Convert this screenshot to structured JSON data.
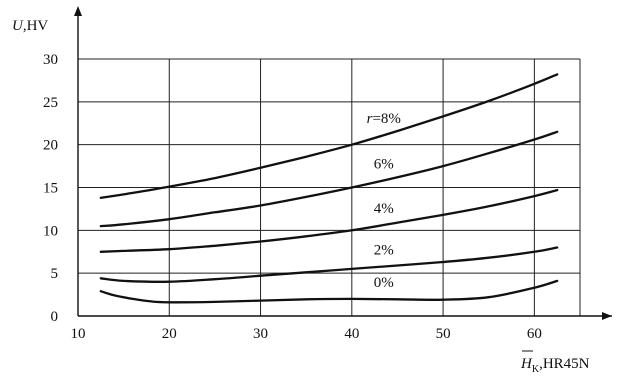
{
  "chart_data": {
    "type": "line",
    "xlabel_symbol": "H",
    "xlabel_subscript": "K",
    "xlabel_unit": ",HR45N",
    "ylabel_symbol": "U",
    "ylabel_unit": ",HV",
    "xlim": [
      10,
      65
    ],
    "ylim": [
      0,
      30
    ],
    "xticks": [
      10,
      20,
      30,
      40,
      50,
      60
    ],
    "yticks": [
      0,
      5,
      10,
      15,
      20,
      25,
      30
    ],
    "grid": true,
    "series": [
      {
        "name": "r=8%",
        "x": [
          12.5,
          15,
          20,
          25,
          30,
          35,
          40,
          45,
          50,
          55,
          60,
          62.5
        ],
        "y": [
          13.8,
          14.2,
          15.1,
          16.1,
          17.3,
          18.6,
          20.0,
          21.6,
          23.3,
          25.1,
          27.1,
          28.2
        ]
      },
      {
        "name": "6%",
        "x": [
          12.5,
          15,
          20,
          25,
          30,
          35,
          40,
          45,
          50,
          55,
          60,
          62.5
        ],
        "y": [
          10.5,
          10.7,
          11.3,
          12.1,
          12.9,
          13.9,
          15.0,
          16.2,
          17.5,
          19.0,
          20.6,
          21.5
        ]
      },
      {
        "name": "4%",
        "x": [
          12.5,
          15,
          20,
          25,
          30,
          35,
          40,
          45,
          50,
          55,
          60,
          62.5
        ],
        "y": [
          7.5,
          7.6,
          7.8,
          8.2,
          8.7,
          9.3,
          10.0,
          10.9,
          11.8,
          12.8,
          14.0,
          14.7
        ]
      },
      {
        "name": "2%",
        "x": [
          12.5,
          15,
          20,
          25,
          30,
          35,
          40,
          45,
          50,
          55,
          60,
          62.5
        ],
        "y": [
          4.4,
          4.1,
          4.0,
          4.3,
          4.7,
          5.1,
          5.5,
          5.9,
          6.3,
          6.8,
          7.5,
          8.0
        ]
      },
      {
        "name": "0%",
        "x": [
          12.5,
          14,
          16,
          18,
          20,
          25,
          30,
          35,
          40,
          45,
          50,
          55,
          60,
          62.5
        ],
        "y": [
          2.9,
          2.4,
          2.0,
          1.7,
          1.6,
          1.65,
          1.8,
          1.95,
          2.0,
          1.95,
          1.9,
          2.2,
          3.3,
          4.1
        ]
      }
    ],
    "label_positions_note": ""
  }
}
